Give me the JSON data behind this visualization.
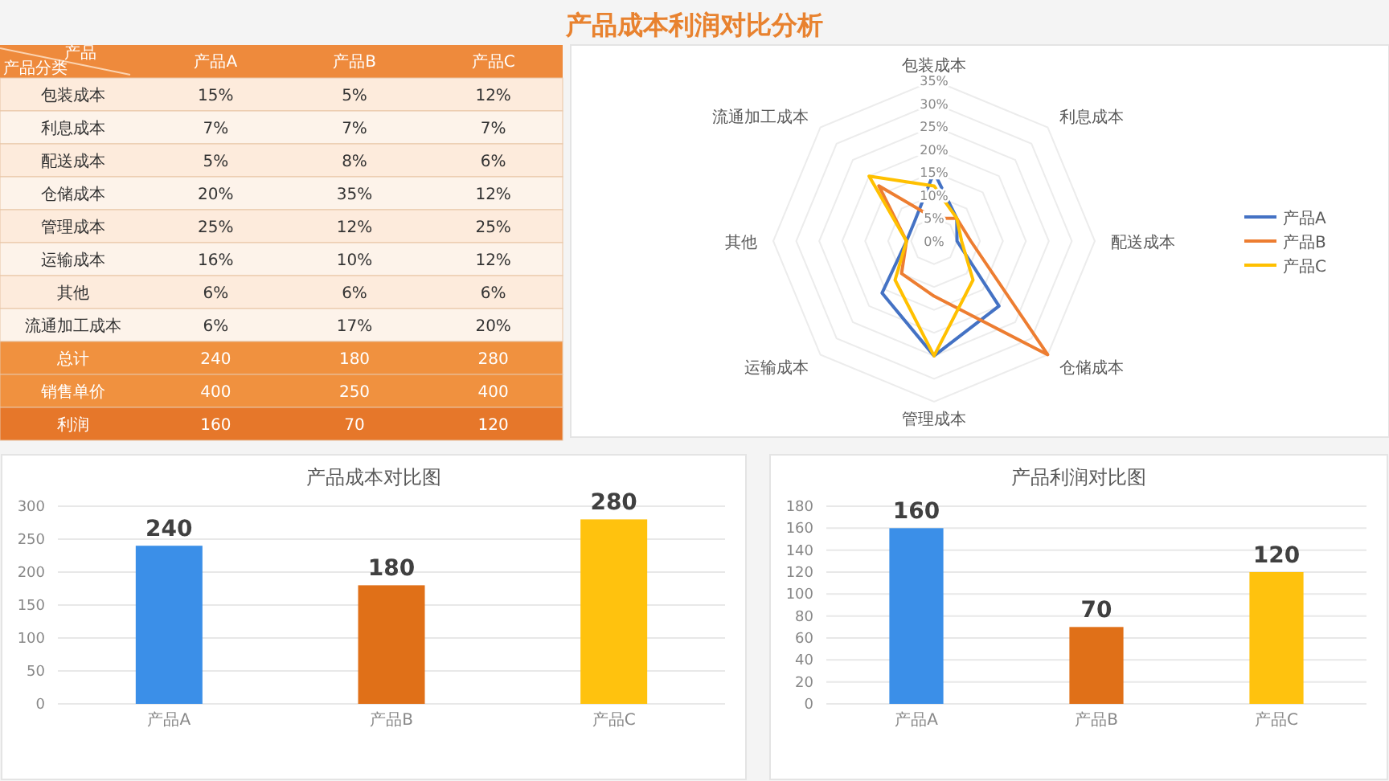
{
  "chart_data": [
    {
      "type": "other",
      "title": "产品成本利润对比分析",
      "xlabel": "产品",
      "ylabel": "产品分类",
      "categories": [
        "产品A",
        "产品B",
        "产品C"
      ],
      "y_categories": [
        "包装成本",
        "利息成本",
        "配送成本",
        "仓储成本",
        "管理成本",
        "运输成本",
        "其他",
        "流通加工成本",
        "总计",
        "销售单价",
        "利润"
      ],
      "cell_labels": [
        [
          "15%",
          "5%",
          "12%"
        ],
        [
          "7%",
          "7%",
          "7%"
        ],
        [
          "5%",
          "8%",
          "6%"
        ],
        [
          "20%",
          "35%",
          "12%"
        ],
        [
          "25%",
          "12%",
          "25%"
        ],
        [
          "16%",
          "10%",
          "12%"
        ],
        [
          "6%",
          "6%",
          "6%"
        ],
        [
          "6%",
          "17%",
          "20%"
        ],
        [
          "240",
          "180",
          "280"
        ],
        [
          "400",
          "250",
          "400"
        ],
        [
          "160",
          "70",
          "120"
        ]
      ],
      "colors": [
        "#ee8a3c",
        "#fdebdc",
        "#fdf3ea",
        "#fdebdc",
        "#fdf3ea",
        "#fdebdc",
        "#fdf3ea",
        "#fdebdc",
        "#fdf3ea",
        "#f0913f",
        "#f0913f",
        "#e6772a"
      ]
    },
    {
      "type": "radar",
      "categories": [
        "包装成本",
        "利息成本",
        "配送成本",
        "仓储成本",
        "管理成本",
        "运输成本",
        "其他",
        "流通加工成本"
      ],
      "series": [
        {
          "name": "产品A",
          "color": "#4472c4",
          "values": [
            15,
            7,
            5,
            20,
            25,
            16,
            6,
            6
          ]
        },
        {
          "name": "产品B",
          "color": "#ed7d31",
          "values": [
            5,
            7,
            8,
            35,
            12,
            10,
            6,
            17
          ]
        },
        {
          "name": "产品C",
          "color": "#ffc000",
          "values": [
            12,
            7,
            6,
            12,
            25,
            12,
            6,
            20
          ]
        }
      ],
      "ylim": [
        0,
        35
      ],
      "yticks": [
        {
          "value": 0,
          "label": "0%"
        },
        {
          "value": 5,
          "label": "5%"
        },
        {
          "value": 10,
          "label": "10%"
        },
        {
          "value": 15,
          "label": "15%"
        },
        {
          "value": 20,
          "label": "20%"
        },
        {
          "value": 25,
          "label": "25%"
        },
        {
          "value": 30,
          "label": "30%"
        },
        {
          "value": 35,
          "label": "35%"
        }
      ],
      "grid": true,
      "legend": "right"
    },
    {
      "type": "bar",
      "title": "产品成本对比图",
      "categories": [
        "产品A",
        "产品B",
        "产品C"
      ],
      "values": [
        240,
        180,
        280
      ],
      "colors": [
        "#3b8fe8",
        "#e07018",
        "#ffc20e"
      ],
      "ylim": [
        0,
        300
      ],
      "yticks": [
        0,
        50,
        100,
        150,
        200,
        250,
        300
      ],
      "grid": "y",
      "data_labels": true
    },
    {
      "type": "bar",
      "title": "产品利润对比图",
      "categories": [
        "产品A",
        "产品B",
        "产品C"
      ],
      "values": [
        160,
        70,
        120
      ],
      "colors": [
        "#3b8fe8",
        "#e07018",
        "#ffc20e"
      ],
      "ylim": [
        0,
        180
      ],
      "yticks": [
        0,
        20,
        40,
        60,
        80,
        100,
        120,
        140,
        160,
        180
      ],
      "grid": "y",
      "data_labels": true
    }
  ]
}
